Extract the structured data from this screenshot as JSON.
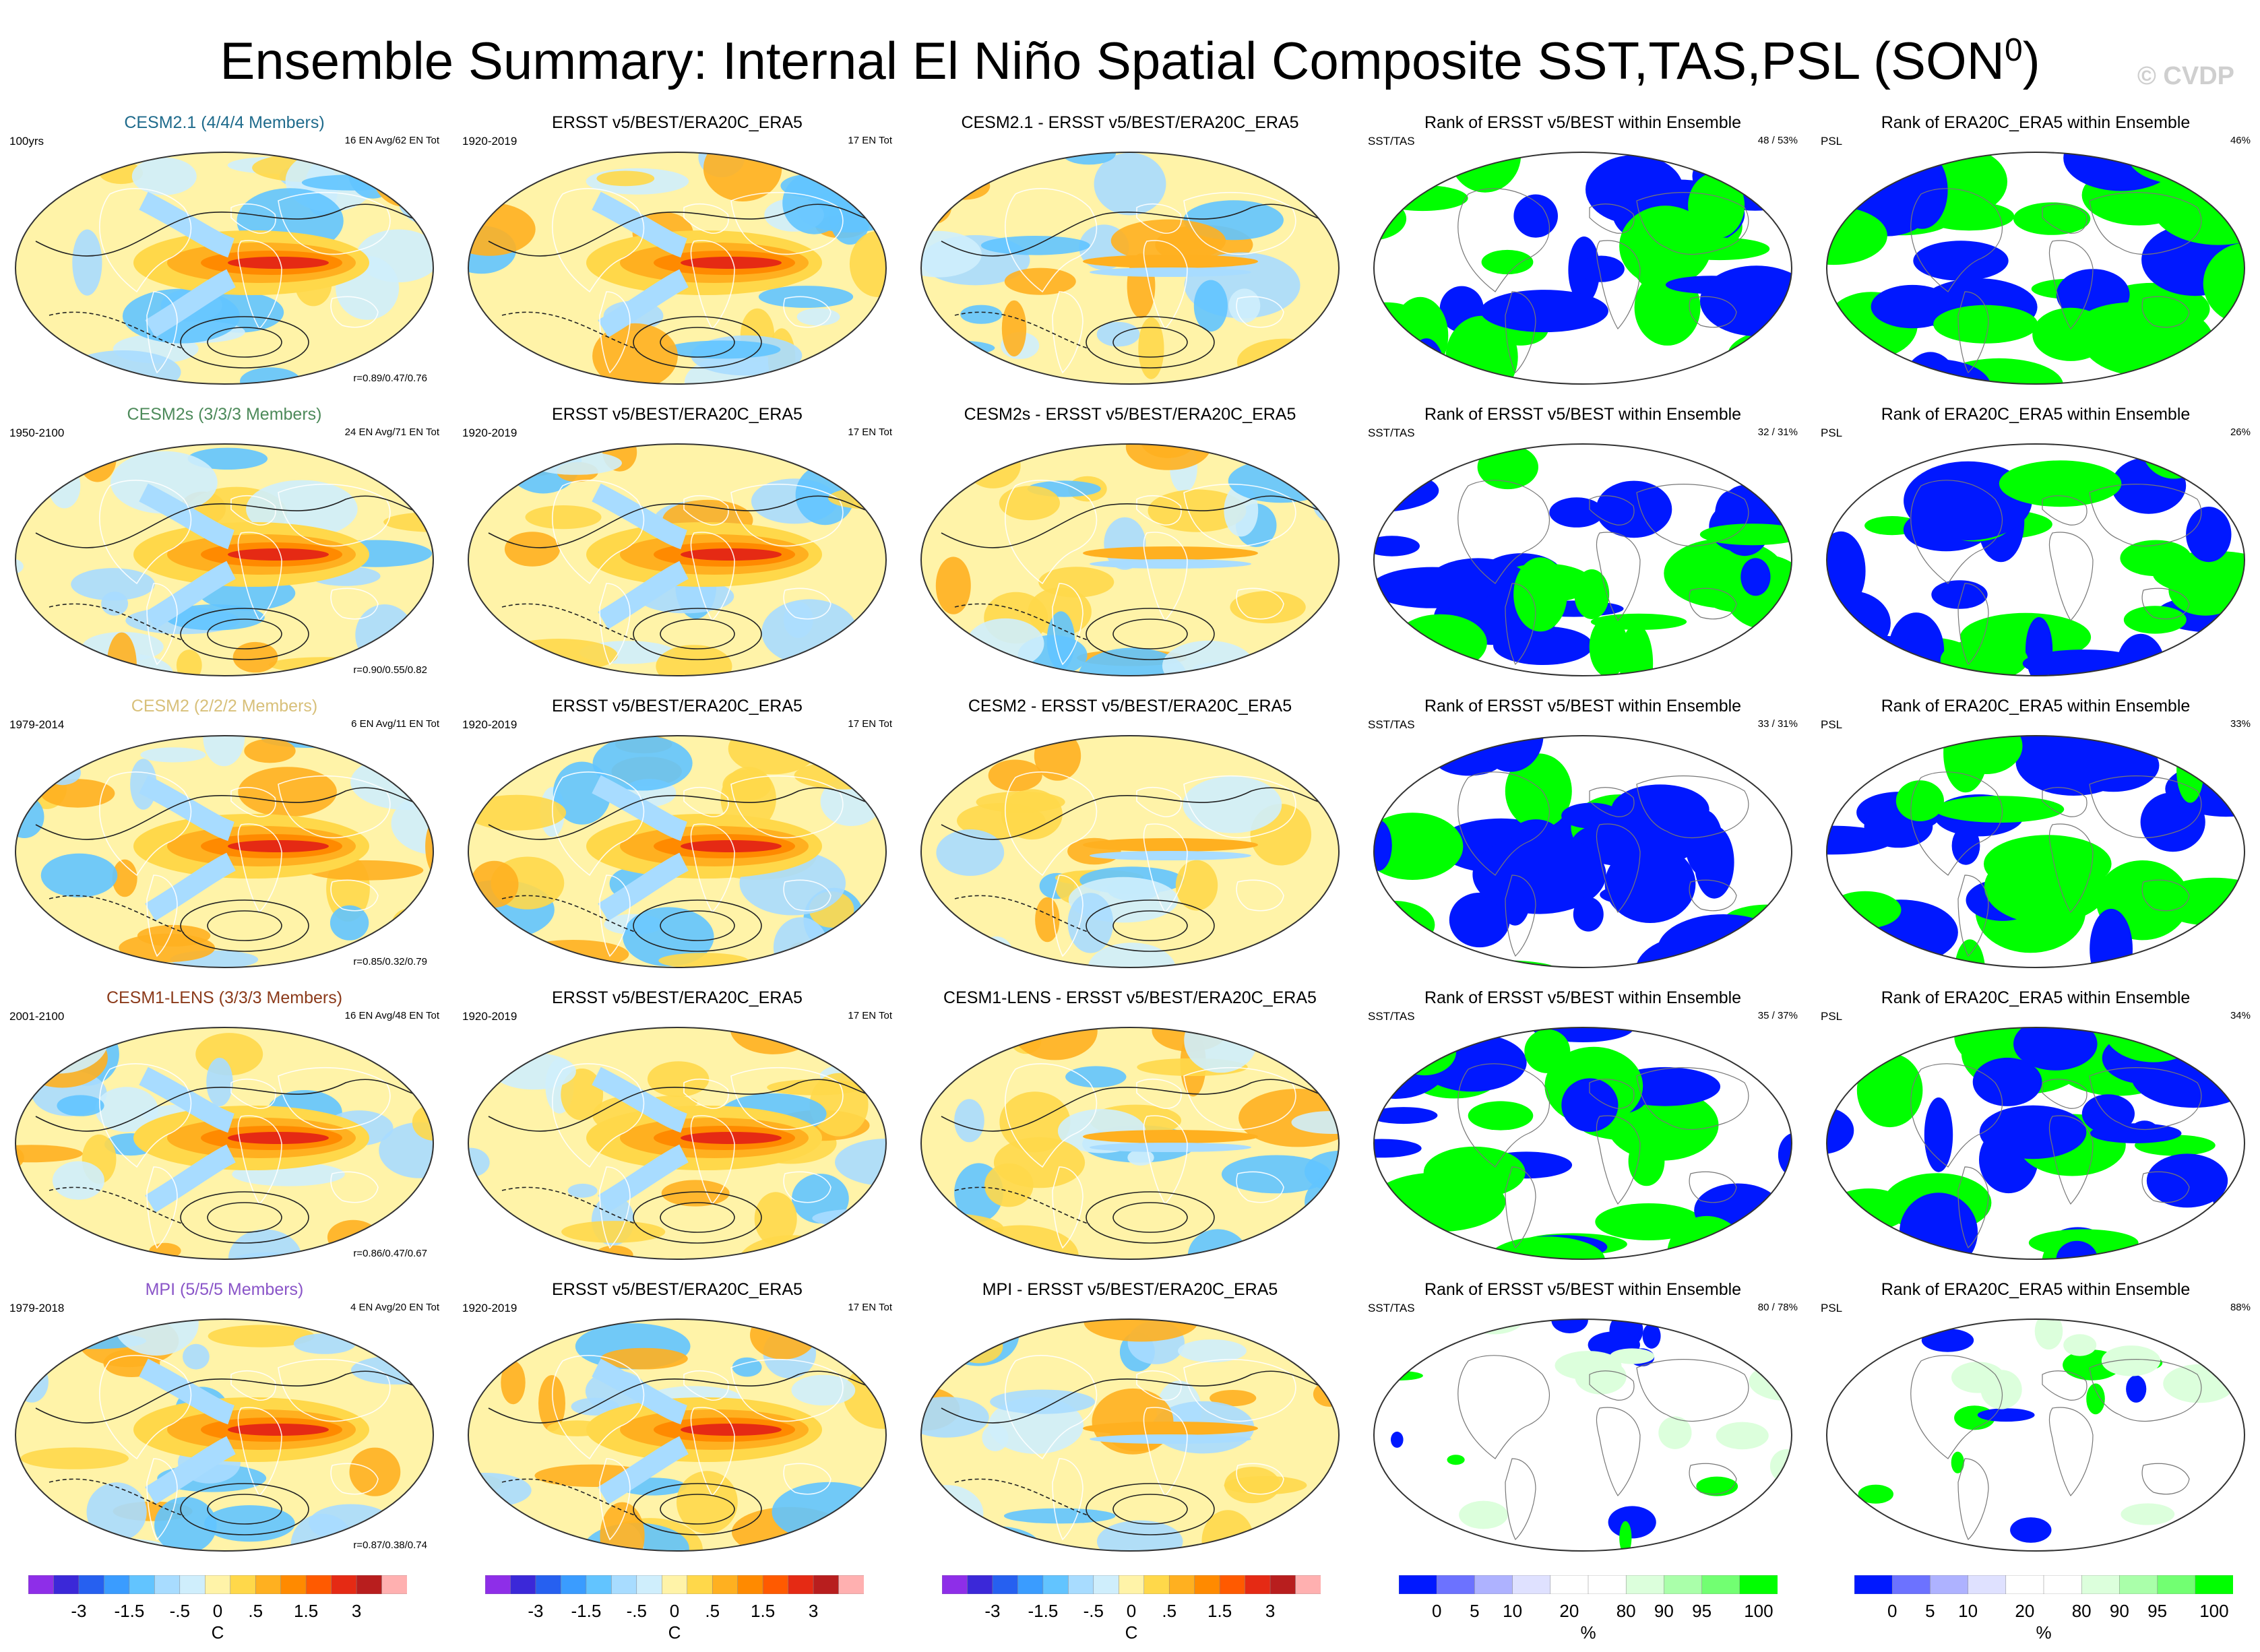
{
  "title": "Ensemble Summary: Internal El Niño Spatial Composite SST,TAS,PSL (SON",
  "title_sup": "0",
  "title_close": ")",
  "watermark": "© CVDP",
  "rows": [
    {
      "model": {
        "label": "CESM2.1 (4/4/4 Members)",
        "color": "#1f6b8c",
        "left": "100yrs",
        "right": "16 EN Avg/62 EN Tot",
        "stat": "r=0.89/0.47/0.76"
      },
      "obs": {
        "label": "ERSST v5/BEST/ERA20C_ERA5",
        "left": "1920-2019",
        "right": "17 EN Tot"
      },
      "diff": {
        "label": "CESM2.1 - ERSST v5/BEST/ERA20C_ERA5"
      },
      "rank1": {
        "label": "Rank of ERSST v5/BEST within Ensemble",
        "left": "SST/TAS",
        "right": "48 / 53%"
      },
      "rank2": {
        "label": "Rank of ERA20C_ERA5 within Ensemble",
        "left": "PSL",
        "right": "46%"
      }
    },
    {
      "model": {
        "label": "CESM2s (3/3/3 Members)",
        "color": "#4d8a5a",
        "left": "1950-2100",
        "right": "24 EN Avg/71 EN Tot",
        "stat": "r=0.90/0.55/0.82"
      },
      "obs": {
        "label": "ERSST v5/BEST/ERA20C_ERA5",
        "left": "1920-2019",
        "right": "17 EN Tot"
      },
      "diff": {
        "label": "CESM2s - ERSST v5/BEST/ERA20C_ERA5"
      },
      "rank1": {
        "label": "Rank of ERSST v5/BEST within Ensemble",
        "left": "SST/TAS",
        "right": "32 / 31%"
      },
      "rank2": {
        "label": "Rank of ERA20C_ERA5 within Ensemble",
        "left": "PSL",
        "right": "26%"
      }
    },
    {
      "model": {
        "label": "CESM2 (2/2/2 Members)",
        "color": "#d8c07a",
        "left": "1979-2014",
        "right": "6 EN Avg/11 EN Tot",
        "stat": "r=0.85/0.32/0.79"
      },
      "obs": {
        "label": "ERSST v5/BEST/ERA20C_ERA5",
        "left": "1920-2019",
        "right": "17 EN Tot"
      },
      "diff": {
        "label": "CESM2 - ERSST v5/BEST/ERA20C_ERA5"
      },
      "rank1": {
        "label": "Rank of ERSST v5/BEST within Ensemble",
        "left": "SST/TAS",
        "right": "33 / 31%"
      },
      "rank2": {
        "label": "Rank of ERA20C_ERA5 within Ensemble",
        "left": "PSL",
        "right": "33%"
      }
    },
    {
      "model": {
        "label": "CESM1-LENS (3/3/3 Members)",
        "color": "#8b3a1a",
        "left": "2001-2100",
        "right": "16 EN Avg/48 EN Tot",
        "stat": "r=0.86/0.47/0.67"
      },
      "obs": {
        "label": "ERSST v5/BEST/ERA20C_ERA5",
        "left": "1920-2019",
        "right": "17 EN Tot"
      },
      "diff": {
        "label": "CESM1-LENS - ERSST v5/BEST/ERA20C_ERA5"
      },
      "rank1": {
        "label": "Rank of ERSST v5/BEST within Ensemble",
        "left": "SST/TAS",
        "right": "35 / 37%"
      },
      "rank2": {
        "label": "Rank of ERA20C_ERA5 within Ensemble",
        "left": "PSL",
        "right": "34%"
      }
    },
    {
      "model": {
        "label": "MPI (5/5/5 Members)",
        "color": "#8a55c8",
        "left": "1979-2018",
        "right": "4 EN Avg/20 EN Tot",
        "stat": "r=0.87/0.38/0.74"
      },
      "obs": {
        "label": "ERSST v5/BEST/ERA20C_ERA5",
        "left": "1920-2019",
        "right": "17 EN Tot"
      },
      "diff": {
        "label": "MPI - ERSST v5/BEST/ERA20C_ERA5"
      },
      "rank1": {
        "label": "Rank of ERSST v5/BEST within Ensemble",
        "left": "SST/TAS",
        "right": "80 / 78%"
      },
      "rank2": {
        "label": "Rank of ERA20C_ERA5 within Ensemble",
        "left": "PSL",
        "right": "88%"
      }
    }
  ],
  "colorbars": {
    "temp": {
      "colors": [
        "#8e2ee8",
        "#3b28d8",
        "#2660f0",
        "#3a9cff",
        "#62c4ff",
        "#a8dcff",
        "#cfeefc",
        "#fff3a8",
        "#ffd84a",
        "#ffb020",
        "#ff8a00",
        "#ff5a00",
        "#e52a14",
        "#b81e1e",
        "#ffb0b0"
      ],
      "ticks": [
        "-3",
        "-1.5",
        "-.5",
        "0",
        ".5",
        "1.5",
        "3"
      ],
      "unit": "C"
    },
    "rank": {
      "colors": [
        "#0018ff",
        "#6c72ff",
        "#aeb2ff",
        "#dfe1ff",
        "#ffffff",
        "#ffffff",
        "#dcffdc",
        "#aaffaa",
        "#72ff72",
        "#00ff00"
      ],
      "ticks": [
        "0",
        "5",
        "10",
        "20",
        "80",
        "90",
        "95",
        "100"
      ],
      "unit": "%"
    }
  }
}
